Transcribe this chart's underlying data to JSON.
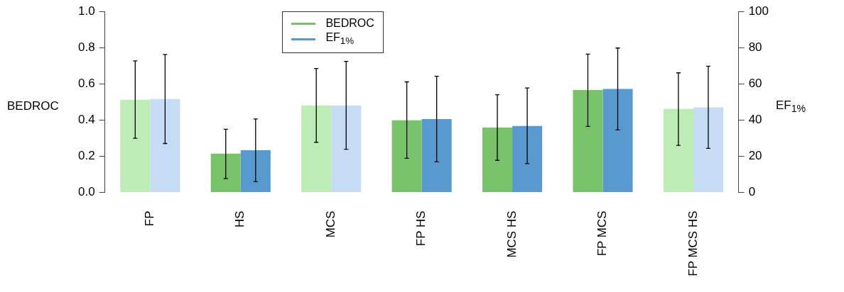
{
  "chart_data": {
    "type": "bar",
    "ylabel": "BEDROC",
    "y2label": "EF$_{1%}$",
    "categories": [
      "FP",
      "HS",
      "MCS",
      "FP HS",
      "MCS HS",
      "FP MCS",
      "FP MCS HS"
    ],
    "series": [
      {
        "name": "BEDROC",
        "color": "#78c36a",
        "colors": [
          "#bdecb4",
          "#78c36a",
          "#bdecb4",
          "#78c36a",
          "#78c36a",
          "#78c36a",
          "#bdecb4"
        ],
        "values": [
          0.512,
          0.214,
          0.48,
          0.398,
          0.358,
          0.566,
          0.461
        ],
        "errors": [
          [
            0.299,
            0.727
          ],
          [
            0.077,
            0.349
          ],
          [
            0.277,
            0.685
          ],
          [
            0.188,
            0.611
          ],
          [
            0.177,
            0.54
          ],
          [
            0.365,
            0.764
          ],
          [
            0.26,
            0.661
          ]
        ]
      },
      {
        "name": "EF$_{1%}$",
        "color": "#5899d0",
        "colors": [
          "#c6dcf4",
          "#5899d0",
          "#c6dcf4",
          "#5899d0",
          "#5899d0",
          "#5899d0",
          "#c6dcf4"
        ],
        "axis": "y2",
        "values": [
          51.6,
          23.3,
          48.0,
          40.5,
          36.7,
          57.2,
          47.0
        ],
        "errors": [
          [
            27.0,
            76.2
          ],
          [
            5.9,
            40.6
          ],
          [
            23.8,
            72.4
          ],
          [
            16.9,
            64.2
          ],
          [
            15.9,
            57.7
          ],
          [
            34.5,
            79.8
          ],
          [
            24.3,
            69.8
          ]
        ]
      }
    ],
    "ylim": [
      0,
      1
    ],
    "yticks": [
      {
        "value": 0,
        "label": "0.0"
      },
      {
        "value": 0.2,
        "label": "0.2"
      },
      {
        "value": 0.4,
        "label": "0.4"
      },
      {
        "value": 0.6,
        "label": "0.6"
      },
      {
        "value": 0.8,
        "label": "0.8"
      },
      {
        "value": 1,
        "label": "1.0"
      }
    ],
    "y2lim": [
      0,
      100
    ],
    "y2ticks": [
      0,
      20,
      40,
      60,
      80,
      100
    ],
    "legend": "top",
    "grid": false
  }
}
